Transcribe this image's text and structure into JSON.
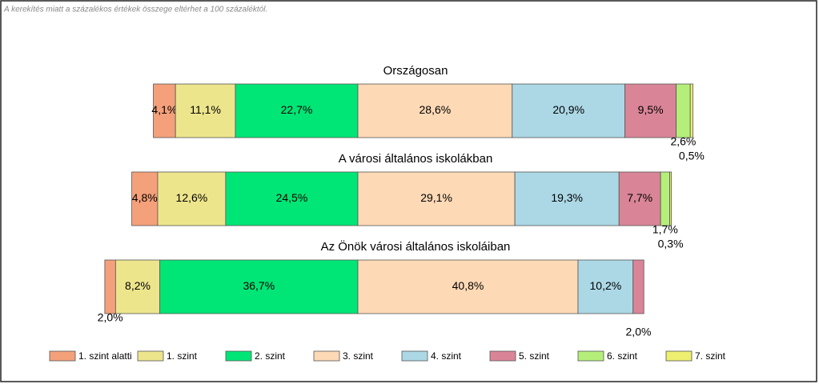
{
  "chart_data": {
    "type": "bar",
    "stacked": true,
    "note": "A kerekítés miatt a  százalékos értékek összege eltérhet a 100 százaléktól.",
    "categories": [
      "Országosan",
      "A városi általános iskolákban",
      "Az Önök városi általános iskoláiban"
    ],
    "series": [
      {
        "name": "1. szint alatti",
        "color": "#f4a07a",
        "values": [
          4.1,
          4.8,
          2.0
        ],
        "value_labels": [
          "4,1%",
          "4,8%",
          "2,0%"
        ]
      },
      {
        "name": "1. szint",
        "color": "#ede58c",
        "values": [
          11.1,
          12.6,
          8.2
        ],
        "value_labels": [
          "11,1%",
          "12,6%",
          "8,2%"
        ]
      },
      {
        "name": "2. szint",
        "color": "#00e676",
        "values": [
          22.7,
          24.5,
          36.7
        ],
        "value_labels": [
          "22,7%",
          "24,5%",
          "36,7%"
        ]
      },
      {
        "name": "3. szint",
        "color": "#fdd9b6",
        "values": [
          28.6,
          29.1,
          40.8
        ],
        "value_labels": [
          "28,6%",
          "29,1%",
          "40,8%"
        ]
      },
      {
        "name": "4. szint",
        "color": "#acd8e6",
        "values": [
          20.9,
          19.3,
          10.2
        ],
        "value_labels": [
          "20,9%",
          "19,3%",
          "10,2%"
        ]
      },
      {
        "name": "5. szint",
        "color": "#d98597",
        "values": [
          9.5,
          7.7,
          2.0
        ],
        "value_labels": [
          "9,5%",
          "7,7%",
          "2,0%"
        ]
      },
      {
        "name": "6. szint",
        "color": "#b4ef7a",
        "values": [
          2.6,
          1.7,
          null
        ],
        "value_labels": [
          "2,6%",
          "1,7%",
          null
        ]
      },
      {
        "name": "7. szint",
        "color": "#eeee70",
        "values": [
          0.5,
          0.3,
          null
        ],
        "value_labels": [
          "0,5%",
          "0,3%",
          null
        ]
      }
    ]
  }
}
